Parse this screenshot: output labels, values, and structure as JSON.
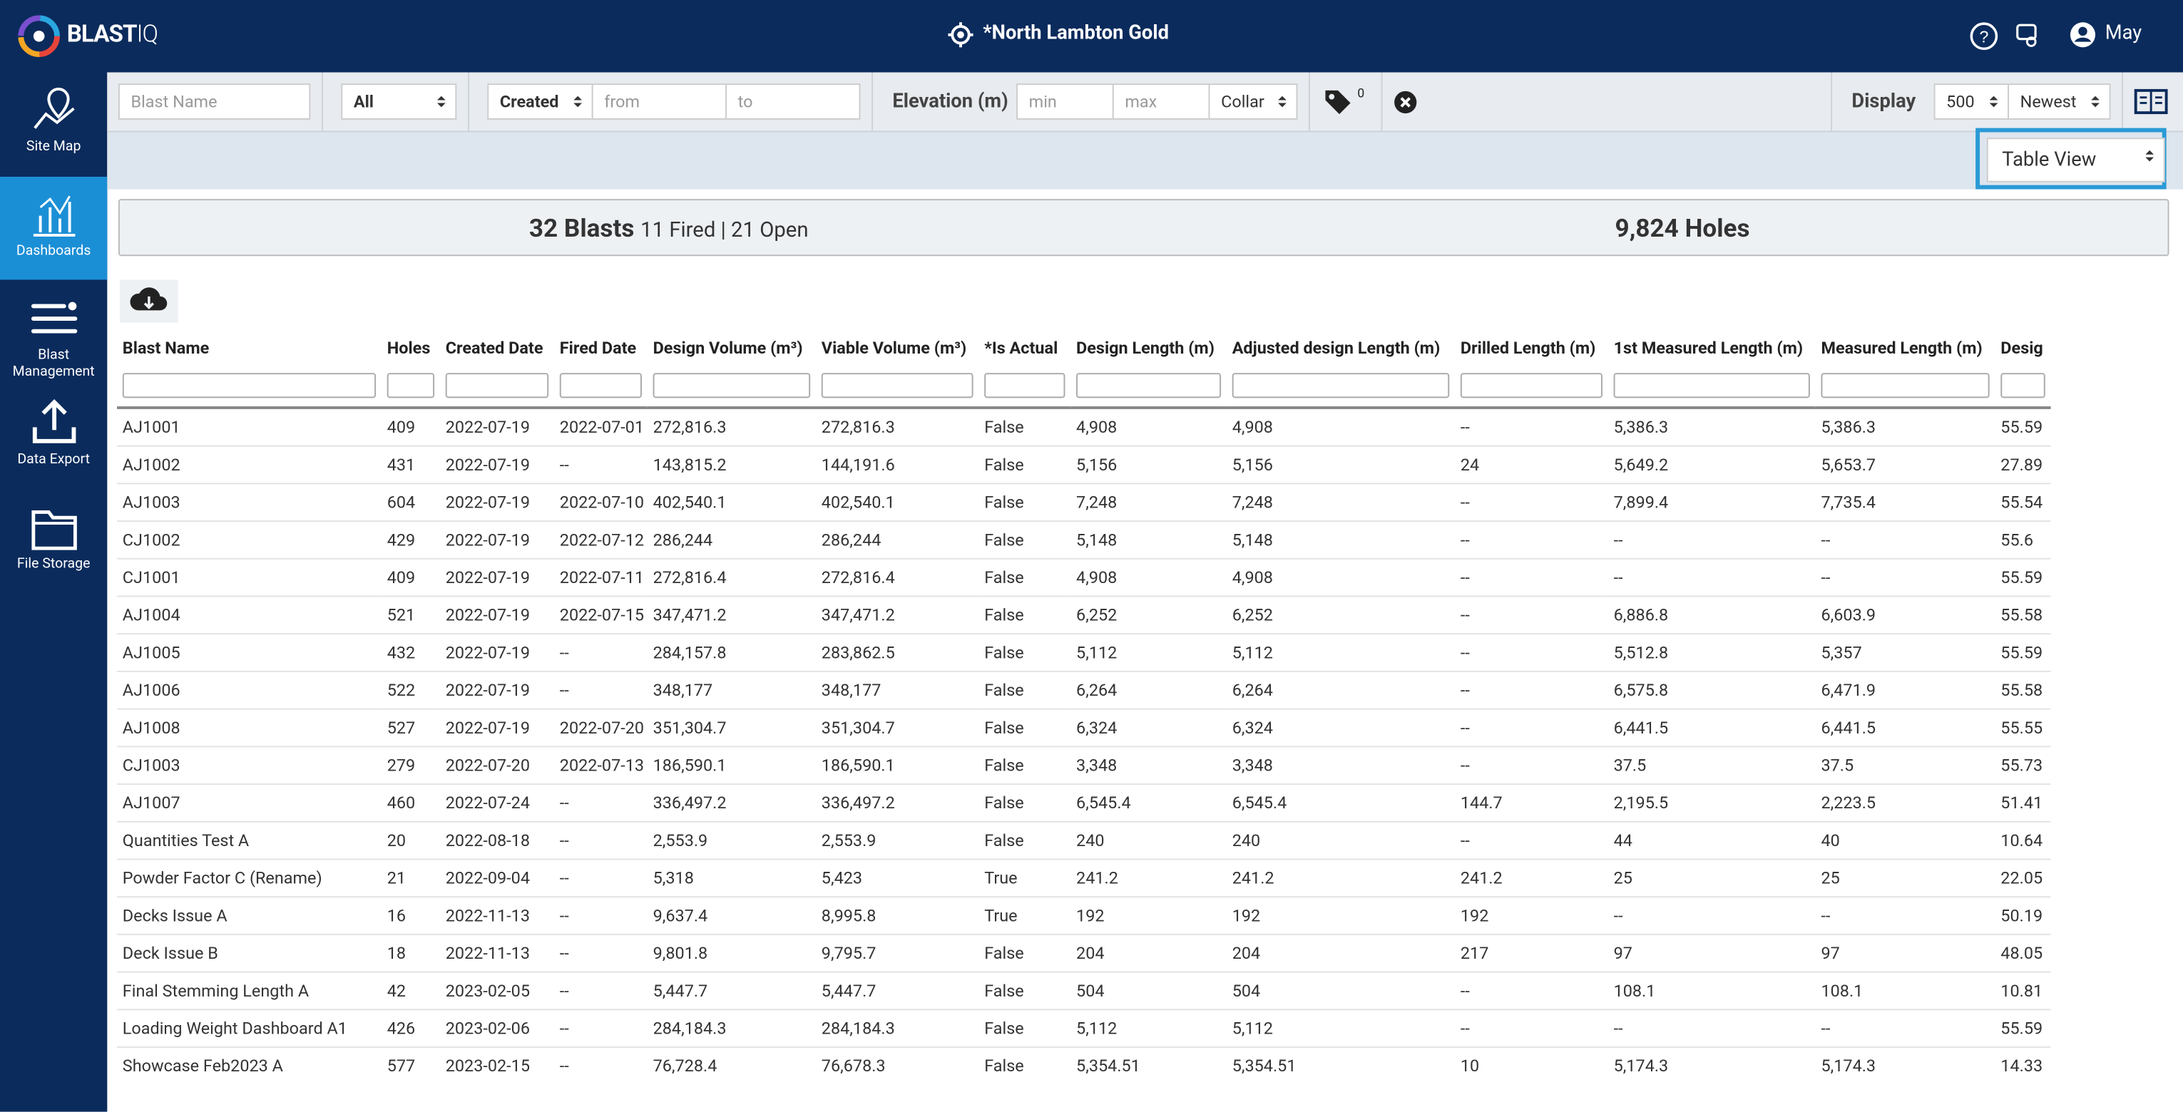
{
  "header": {
    "logo_bold": "BLAST",
    "logo_light": "IQ",
    "site": "*North Lambton Gold",
    "user": "May"
  },
  "sidebar": {
    "items": [
      "Site Map",
      "Dashboards",
      "Blast Management",
      "Data Export",
      "File Storage"
    ]
  },
  "filters": {
    "blast_name": "Blast Name",
    "status": "All",
    "date_field": "Created",
    "from": "from",
    "to": "to",
    "elevation_label": "Elevation (m)",
    "min": "min",
    "max": "max",
    "elevation_ref": "Collar",
    "tag_count": "0",
    "display_label": "Display",
    "display_count": "500",
    "sort": "Newest"
  },
  "view": {
    "selected": "Table View"
  },
  "summary": {
    "blasts": "32 Blasts",
    "status": "11 Fired | 21 Open",
    "holes": "9,824 Holes"
  },
  "table": {
    "columns": [
      "Blast Name",
      "Holes",
      "Created Date",
      "Fired Date",
      "Design Volume (m³)",
      "Viable Volume (m³)",
      "*Is Actual",
      "Design Length (m)",
      "Adjusted design Length (m)",
      "Drilled Length (m)",
      "1st Measured Length (m)",
      "Measured Length (m)",
      "Desig"
    ],
    "rows": [
      [
        "AJ1001",
        "409",
        "2022-07-19",
        "2022-07-01",
        "272,816.3",
        "272,816.3",
        "False",
        "4,908",
        "4,908",
        "--",
        "5,386.3",
        "5,386.3",
        "55.59"
      ],
      [
        "AJ1002",
        "431",
        "2022-07-19",
        "--",
        "143,815.2",
        "144,191.6",
        "False",
        "5,156",
        "5,156",
        "24",
        "5,649.2",
        "5,653.7",
        "27.89"
      ],
      [
        "AJ1003",
        "604",
        "2022-07-19",
        "2022-07-10",
        "402,540.1",
        "402,540.1",
        "False",
        "7,248",
        "7,248",
        "--",
        "7,899.4",
        "7,735.4",
        "55.54"
      ],
      [
        "CJ1002",
        "429",
        "2022-07-19",
        "2022-07-12",
        "286,244",
        "286,244",
        "False",
        "5,148",
        "5,148",
        "--",
        "--",
        "--",
        "55.6"
      ],
      [
        "CJ1001",
        "409",
        "2022-07-19",
        "2022-07-11",
        "272,816.4",
        "272,816.4",
        "False",
        "4,908",
        "4,908",
        "--",
        "--",
        "--",
        "55.59"
      ],
      [
        "AJ1004",
        "521",
        "2022-07-19",
        "2022-07-15",
        "347,471.2",
        "347,471.2",
        "False",
        "6,252",
        "6,252",
        "--",
        "6,886.8",
        "6,603.9",
        "55.58"
      ],
      [
        "AJ1005",
        "432",
        "2022-07-19",
        "--",
        "284,157.8",
        "283,862.5",
        "False",
        "5,112",
        "5,112",
        "--",
        "5,512.8",
        "5,357",
        "55.59"
      ],
      [
        "AJ1006",
        "522",
        "2022-07-19",
        "--",
        "348,177",
        "348,177",
        "False",
        "6,264",
        "6,264",
        "--",
        "6,575.8",
        "6,471.9",
        "55.58"
      ],
      [
        "AJ1008",
        "527",
        "2022-07-19",
        "2022-07-20",
        "351,304.7",
        "351,304.7",
        "False",
        "6,324",
        "6,324",
        "--",
        "6,441.5",
        "6,441.5",
        "55.55"
      ],
      [
        "CJ1003",
        "279",
        "2022-07-20",
        "2022-07-13",
        "186,590.1",
        "186,590.1",
        "False",
        "3,348",
        "3,348",
        "--",
        "37.5",
        "37.5",
        "55.73"
      ],
      [
        "AJ1007",
        "460",
        "2022-07-24",
        "--",
        "336,497.2",
        "336,497.2",
        "False",
        "6,545.4",
        "6,545.4",
        "144.7",
        "2,195.5",
        "2,223.5",
        "51.41"
      ],
      [
        "Quantities Test A",
        "20",
        "2022-08-18",
        "--",
        "2,553.9",
        "2,553.9",
        "False",
        "240",
        "240",
        "--",
        "44",
        "40",
        "10.64"
      ],
      [
        "Powder Factor C (Rename)",
        "21",
        "2022-09-04",
        "--",
        "5,318",
        "5,423",
        "True",
        "241.2",
        "241.2",
        "241.2",
        "25",
        "25",
        "22.05"
      ],
      [
        "Decks Issue A",
        "16",
        "2022-11-13",
        "--",
        "9,637.4",
        "8,995.8",
        "True",
        "192",
        "192",
        "192",
        "--",
        "--",
        "50.19"
      ],
      [
        "Deck Issue B",
        "18",
        "2022-11-13",
        "--",
        "9,801.8",
        "9,795.7",
        "False",
        "204",
        "204",
        "217",
        "97",
        "97",
        "48.05"
      ],
      [
        "Final Stemming Length A",
        "42",
        "2023-02-05",
        "--",
        "5,447.7",
        "5,447.7",
        "False",
        "504",
        "504",
        "--",
        "108.1",
        "108.1",
        "10.81"
      ],
      [
        "Loading Weight Dashboard A1",
        "426",
        "2023-02-06",
        "--",
        "284,184.3",
        "284,184.3",
        "False",
        "5,112",
        "5,112",
        "--",
        "--",
        "--",
        "55.59"
      ],
      [
        "Showcase Feb2023 A",
        "577",
        "2023-02-15",
        "--",
        "76,728.4",
        "76,678.3",
        "False",
        "5,354.51",
        "5,354.51",
        "10",
        "5,174.3",
        "5,174.3",
        "14.33"
      ]
    ]
  }
}
